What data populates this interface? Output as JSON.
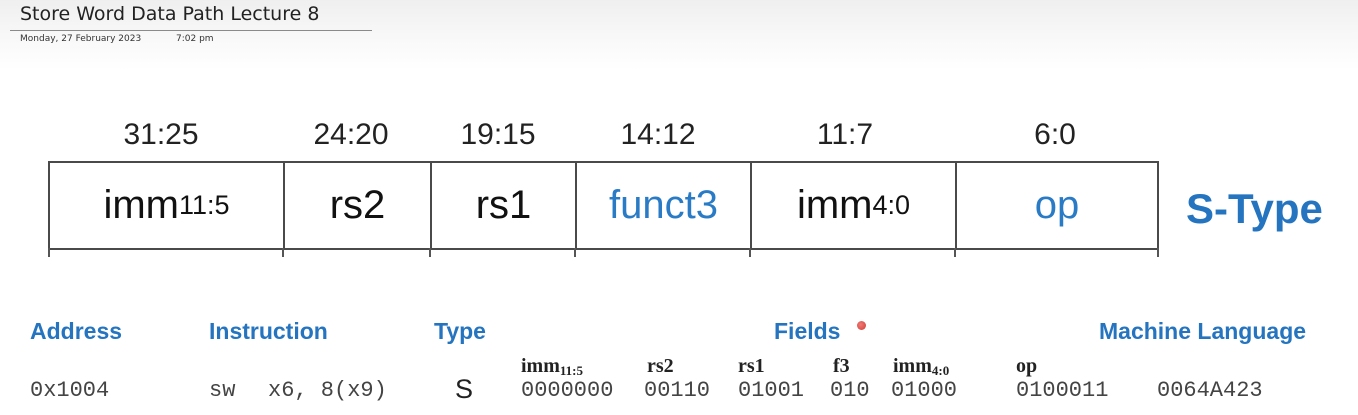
{
  "note": {
    "title": "Store Word Data Path Lecture 8",
    "date": "Monday, 27 February 2023",
    "time": "7:02 pm"
  },
  "format": {
    "bit_ranges": [
      "31:25",
      "24:20",
      "19:15",
      "14:12",
      "11:7",
      "6:0"
    ],
    "fields": [
      {
        "base": "imm",
        "sub": "11:5"
      },
      {
        "base": "rs2",
        "sub": ""
      },
      {
        "base": "rs1",
        "sub": ""
      },
      {
        "base": "funct3",
        "sub": ""
      },
      {
        "base": "imm",
        "sub": "4:0"
      },
      {
        "base": "op",
        "sub": ""
      }
    ],
    "type_label": "S-Type",
    "colors": {
      "field_blue": "#2a7bc6",
      "heading_blue": "#2474c0"
    }
  },
  "table": {
    "headers": {
      "address": "Address",
      "instruction": "Instruction",
      "type": "Type",
      "fields": "Fields",
      "machine": "Machine Language"
    },
    "field_headers": [
      {
        "base": "imm",
        "sub": "11:5"
      },
      {
        "base": "rs2",
        "sub": ""
      },
      {
        "base": "rs1",
        "sub": ""
      },
      {
        "base": "f3",
        "sub": ""
      },
      {
        "base": "imm",
        "sub": "4:0"
      },
      {
        "base": "op",
        "sub": ""
      }
    ],
    "row": {
      "address": "0x1004",
      "mnemonic": "sw",
      "operands": "x6, 8(x9)",
      "type": "S",
      "fields": [
        "0000000",
        "00110",
        "01001",
        "010",
        "01000",
        "0100011"
      ],
      "machine": "0064A423"
    }
  }
}
